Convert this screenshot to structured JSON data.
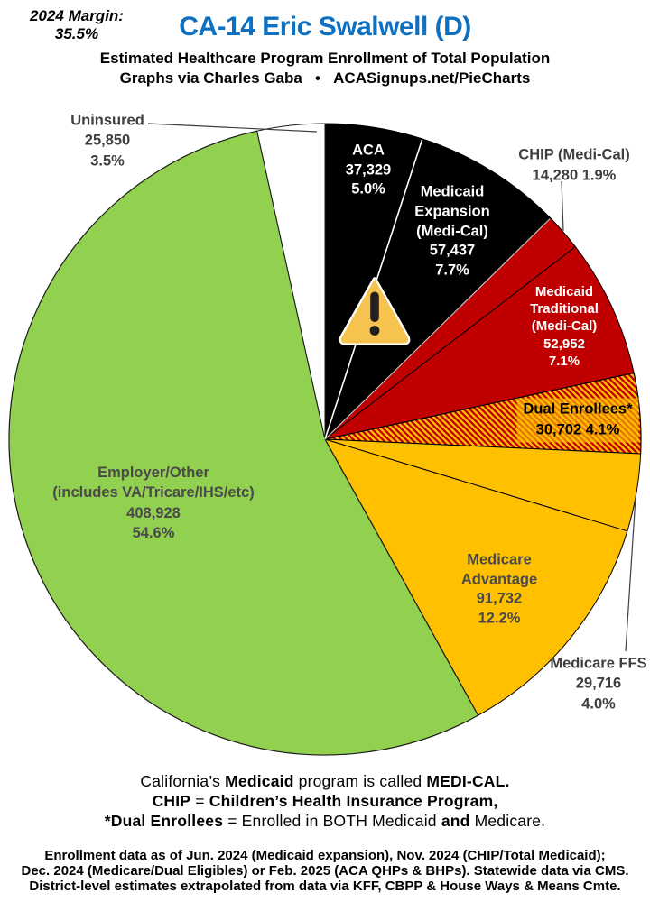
{
  "header": {
    "margin_label": "2024 Margin:",
    "margin_value": "35.5%",
    "title": "CA-14 Eric Swalwell (D)",
    "subtitle": "Estimated Healthcare Program Enrollment of Total Population",
    "byline_left": "Graphs via Charles Gaba",
    "byline_bullet": "•",
    "byline_right": "ACASignups.net/PieCharts"
  },
  "chart_data": {
    "type": "pie",
    "title": "Estimated Healthcare Program Enrollment of Total Population",
    "total": 748926,
    "start_angle_deg": 0,
    "direction": "clockwise",
    "legend_position": "none",
    "slices": [
      {
        "id": "aca",
        "label": "ACA",
        "value": 37329,
        "value_text": "37,329",
        "pct_text": "5.0%",
        "color": "#000000",
        "label_lines": [
          "ACA",
          "37,329",
          "5.0%"
        ],
        "label_placement": "inside"
      },
      {
        "id": "medicaid_expansion",
        "label": "Medicaid Expansion (Medi-Cal)",
        "value": 57437,
        "value_text": "57,437",
        "pct_text": "7.7%",
        "color": "#000000",
        "label_lines": [
          "Medicaid",
          "Expansion",
          "(Medi-Cal)",
          "57,437",
          "7.7%"
        ],
        "label_placement": "inside"
      },
      {
        "id": "chip",
        "label": "CHIP (Medi-Cal)",
        "value": 14280,
        "value_text": "14,280",
        "pct_text": "1.9%",
        "color": "#c00000",
        "label_lines": [
          "CHIP (Medi-Cal)",
          "14,280 1.9%"
        ],
        "label_placement": "outside"
      },
      {
        "id": "medicaid_traditional",
        "label": "Medicaid Traditional (Medi-Cal)",
        "value": 52952,
        "value_text": "52,952",
        "pct_text": "7.1%",
        "color": "#c00000",
        "label_lines": [
          "Medicaid",
          "Traditional",
          "(Medi-Cal)",
          "52,952",
          "7.1%"
        ],
        "label_placement": "inside"
      },
      {
        "id": "dual_enrollees",
        "label": "Dual Enrollees*",
        "value": 30702,
        "value_text": "30,702",
        "pct_text": "4.1%",
        "color": "hatch",
        "hatch_colors": [
          "#ffc000",
          "#c00000"
        ],
        "label_lines": [
          "Dual Enrollees*",
          "30,702 4.1%"
        ],
        "label_placement": "inside"
      },
      {
        "id": "medicare_ffs",
        "label": "Medicare FFS",
        "value": 29716,
        "value_text": "29,716",
        "pct_text": "4.0%",
        "color": "#ffc000",
        "label_lines": [
          "Medicare FFS",
          "29,716",
          "4.0%"
        ],
        "label_placement": "outside"
      },
      {
        "id": "medicare_advantage",
        "label": "Medicare Advantage",
        "value": 91732,
        "value_text": "91,732",
        "pct_text": "12.2%",
        "color": "#ffc000",
        "label_lines": [
          "Medicare",
          "Advantage",
          "91,732",
          "12.2%"
        ],
        "label_placement": "inside"
      },
      {
        "id": "employer_other",
        "label": "Employer/Other (includes VA/Tricare/IHS/etc)",
        "value": 408928,
        "value_text": "408,928",
        "pct_text": "54.6%",
        "color": "#92d050",
        "label_lines": [
          "Employer/Other",
          "(includes VA/Tricare/IHS/etc)",
          "408,928",
          "54.6%"
        ],
        "label_placement": "inside"
      },
      {
        "id": "uninsured",
        "label": "Uninsured",
        "value": 25850,
        "value_text": "25,850",
        "pct_text": "3.5%",
        "color": "#ffffff",
        "label_lines": [
          "Uninsured",
          "25,850",
          "3.5%"
        ],
        "label_placement": "outside"
      }
    ]
  },
  "icons": {
    "warning_triangle": "warning-triangle-icon"
  },
  "colors": {
    "title_blue": "#0e70c0",
    "pie_black": "#000000",
    "pie_red": "#c00000",
    "pie_gold": "#ffc000",
    "pie_green": "#92d050",
    "pie_white": "#ffffff",
    "label_gray": "#3f3f3f"
  },
  "footnotes": {
    "block1": [
      [
        {
          "t": "California’s ",
          "b": 0
        },
        {
          "t": "Medicaid",
          "b": 1
        },
        {
          "t": " program is called ",
          "b": 0
        },
        {
          "t": "MEDI-CAL.",
          "b": 1
        }
      ],
      [
        {
          "t": "CHIP",
          "b": 1
        },
        {
          "t": " = ",
          "b": 0
        },
        {
          "t": "Children’s Health Insurance Program,",
          "b": 1
        }
      ],
      [
        {
          "t": "*Dual Enrollees",
          "b": 1
        },
        {
          "t": " = Enrolled in BOTH Medicaid ",
          "b": 0
        },
        {
          "t": "and",
          "b": 1
        },
        {
          "t": " Medicare.",
          "b": 0
        }
      ]
    ],
    "block2": [
      "Enrollment data as of Jun. 2024 (Medicaid expansion), Nov. 2024 (CHIP/Total Medicaid);",
      "Dec. 2024 (Medicare/Dual Eligibles) or Feb. 2025 (ACA QHPs & BHPs). Statewide data via CMS.",
      "District-level estimates extrapolated from data via KFF, CBPP & House Ways & Means Cmte."
    ]
  }
}
